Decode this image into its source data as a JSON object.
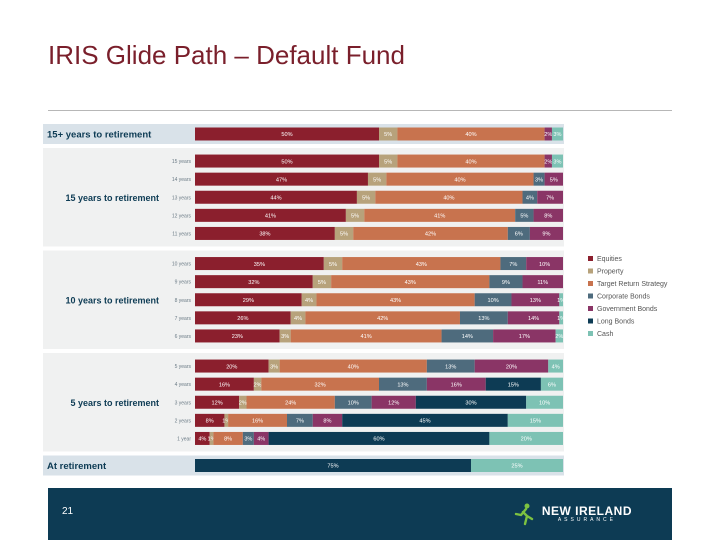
{
  "slide": {
    "title": "IRIS Glide Path – Default Fund",
    "page_number": "21",
    "logo": {
      "name": "NEW IRELAND",
      "subtitle": "ASSURANCE",
      "icon": "runner-icon"
    }
  },
  "chart_data": {
    "type": "bar",
    "orientation": "horizontal",
    "stacked": true,
    "value_unit": "%",
    "legend": {
      "placement": "right",
      "items": [
        {
          "name": "Equities",
          "color": "#8b1f2d"
        },
        {
          "name": "Property",
          "color": "#b7a27b"
        },
        {
          "name": "Target Return Strategy",
          "color": "#c8734e"
        },
        {
          "name": "Corporate Bonds",
          "color": "#4e6b7d"
        },
        {
          "name": "Government Bonds",
          "color": "#8a3566"
        },
        {
          "name": "Long Bonds",
          "color": "#0d3b54"
        },
        {
          "name": "Cash",
          "color": "#7dc2b4"
        }
      ]
    },
    "sections": [
      {
        "label": "15+ years to retirement",
        "header": true,
        "rows": [
          {
            "label": "",
            "values": [
              50,
              5,
              40,
              0,
              2,
              0,
              3
            ]
          }
        ]
      },
      {
        "label": "15 years to retirement",
        "rows": [
          {
            "label": "15 years",
            "values": [
              50,
              5,
              40,
              0,
              2,
              0,
              3
            ]
          },
          {
            "label": "14 years",
            "values": [
              47,
              5,
              40,
              3,
              5,
              0,
              0
            ]
          },
          {
            "label": "13 years",
            "values": [
              44,
              5,
              40,
              4,
              7,
              0,
              0
            ]
          },
          {
            "label": "12 years",
            "values": [
              41,
              5,
              41,
              5,
              8,
              0,
              0
            ]
          },
          {
            "label": "11 years",
            "values": [
              38,
              5,
              42,
              6,
              9,
              0,
              0
            ]
          }
        ]
      },
      {
        "label": "10 years to retirement",
        "rows": [
          {
            "label": "10 years",
            "values": [
              35,
              5,
              43,
              7,
              10,
              0,
              0
            ]
          },
          {
            "label": "9 years",
            "values": [
              32,
              5,
              43,
              9,
              11,
              0,
              0
            ]
          },
          {
            "label": "8 years",
            "values": [
              29,
              4,
              43,
              10,
              13,
              0,
              1
            ]
          },
          {
            "label": "7 years",
            "values": [
              26,
              4,
              42,
              13,
              14,
              0,
              1
            ]
          },
          {
            "label": "6 years",
            "values": [
              23,
              3,
              41,
              14,
              17,
              0,
              2
            ]
          }
        ]
      },
      {
        "label": "5 years to retirement",
        "rows": [
          {
            "label": "5 years",
            "values": [
              20,
              3,
              40,
              13,
              20,
              0,
              4
            ]
          },
          {
            "label": "4 years",
            "values": [
              16,
              2,
              32,
              13,
              16,
              15,
              6
            ]
          },
          {
            "label": "3 years",
            "values": [
              12,
              2,
              24,
              10,
              12,
              30,
              10
            ]
          },
          {
            "label": "2 years",
            "values": [
              8,
              1,
              16,
              7,
              8,
              45,
              15
            ]
          },
          {
            "label": "1 year",
            "values": [
              4,
              1,
              8,
              3,
              4,
              60,
              20
            ]
          }
        ]
      },
      {
        "label": "At retirement",
        "header": true,
        "rows": [
          {
            "label": "",
            "values": [
              0,
              0,
              0,
              0,
              0,
              75,
              25
            ]
          }
        ]
      }
    ]
  }
}
